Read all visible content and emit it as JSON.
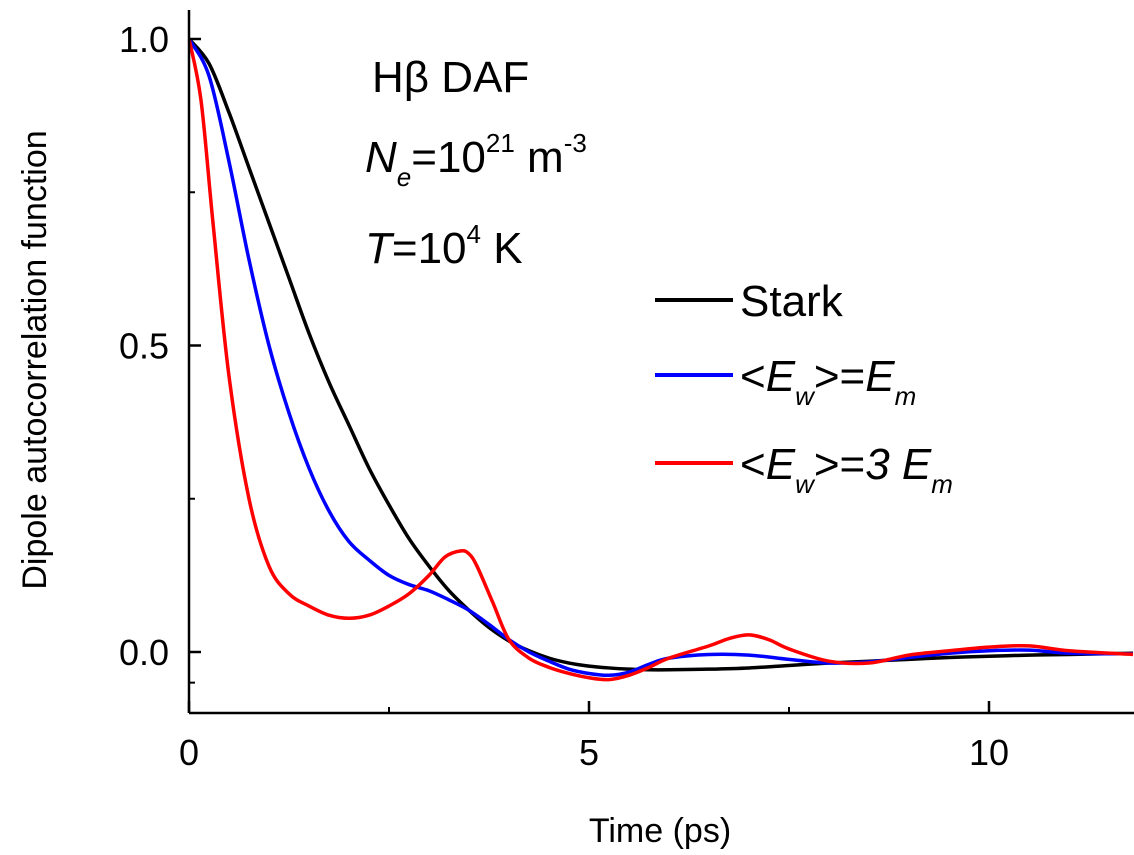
{
  "chart_data": {
    "type": "line",
    "xlabel": "Time (ps)",
    "ylabel": "Dipole autocorrelation function",
    "xlim": [
      0,
      11.8
    ],
    "ylim": [
      -0.1,
      1.05
    ],
    "xticks": [
      0,
      5,
      10
    ],
    "xtick_labels": [
      "0",
      "5",
      "10"
    ],
    "yticks": [
      0.0,
      0.5,
      1.0
    ],
    "ytick_labels": [
      "0.0",
      "0.5",
      "1.0"
    ],
    "grid": false,
    "legend_position": "right",
    "annotation": {
      "line1": "Hβ DAF",
      "line2_symbol": "N",
      "line2_sub": "e",
      "line2_text": "=10",
      "line2_sup": "21",
      "line2_unit": " m",
      "line2_unit_sup": "-3",
      "line3_symbol": "T",
      "line3_text": "=10",
      "line3_sup": "4",
      "line3_unit": " K"
    },
    "series": [
      {
        "name": "Stark",
        "color": "#000000",
        "x": [
          0,
          0.25,
          0.5,
          0.75,
          1.0,
          1.25,
          1.5,
          1.75,
          2.0,
          2.25,
          2.5,
          2.75,
          3.0,
          3.25,
          3.5,
          3.75,
          4.0,
          4.25,
          4.5,
          4.75,
          5.0,
          5.25,
          5.5,
          5.75,
          6.0,
          6.5,
          7.0,
          7.5,
          8.0,
          8.5,
          9.0,
          9.5,
          10.0,
          10.5,
          11.0,
          11.8
        ],
        "y": [
          1.0,
          0.96,
          0.88,
          0.79,
          0.7,
          0.61,
          0.52,
          0.44,
          0.37,
          0.3,
          0.24,
          0.185,
          0.14,
          0.1,
          0.068,
          0.04,
          0.018,
          0.002,
          -0.01,
          -0.018,
          -0.023,
          -0.026,
          -0.028,
          -0.029,
          -0.029,
          -0.028,
          -0.026,
          -0.022,
          -0.018,
          -0.015,
          -0.012,
          -0.009,
          -0.007,
          -0.005,
          -0.004,
          -0.002
        ]
      },
      {
        "name": "<E_w>=E_m",
        "label_parts": [
          "<",
          "E",
          "w",
          ">=",
          "E",
          "m"
        ],
        "color": "#0000ff",
        "x": [
          0,
          0.25,
          0.5,
          0.75,
          1.0,
          1.25,
          1.5,
          1.75,
          2.0,
          2.25,
          2.5,
          2.75,
          3.0,
          3.25,
          3.5,
          3.75,
          4.0,
          4.25,
          4.5,
          4.75,
          5.0,
          5.25,
          5.5,
          5.75,
          6.0,
          6.5,
          7.0,
          7.5,
          8.0,
          8.5,
          9.0,
          9.5,
          10.0,
          10.5,
          11.0,
          11.8
        ],
        "y": [
          1.0,
          0.94,
          0.8,
          0.64,
          0.5,
          0.39,
          0.3,
          0.23,
          0.18,
          0.15,
          0.125,
          0.11,
          0.1,
          0.085,
          0.068,
          0.045,
          0.02,
          0.0,
          -0.015,
          -0.028,
          -0.035,
          -0.038,
          -0.033,
          -0.02,
          -0.01,
          -0.004,
          -0.005,
          -0.012,
          -0.018,
          -0.016,
          -0.009,
          -0.002,
          0.002,
          0.003,
          -0.002,
          -0.003
        ]
      },
      {
        "name": "<E_w>=3 E_m",
        "label_parts": [
          "<",
          "E",
          "w",
          ">=",
          "3 E",
          "m"
        ],
        "color": "#ff0000",
        "x": [
          0,
          0.15,
          0.3,
          0.5,
          0.75,
          1.0,
          1.25,
          1.5,
          1.75,
          2.0,
          2.25,
          2.5,
          2.75,
          3.0,
          3.2,
          3.4,
          3.5,
          3.6,
          3.8,
          4.0,
          4.25,
          4.5,
          4.75,
          5.0,
          5.25,
          5.5,
          5.75,
          6.0,
          6.5,
          6.75,
          7.0,
          7.25,
          7.5,
          8.0,
          8.5,
          9.0,
          9.5,
          10.0,
          10.5,
          11.0,
          11.8
        ],
        "y": [
          1.0,
          0.9,
          0.7,
          0.45,
          0.25,
          0.14,
          0.095,
          0.075,
          0.06,
          0.055,
          0.06,
          0.075,
          0.095,
          0.125,
          0.155,
          0.165,
          0.16,
          0.14,
          0.08,
          0.02,
          -0.01,
          -0.025,
          -0.035,
          -0.042,
          -0.045,
          -0.038,
          -0.025,
          -0.01,
          0.01,
          0.022,
          0.028,
          0.02,
          0.005,
          -0.015,
          -0.018,
          -0.005,
          0.002,
          0.008,
          0.01,
          0.002,
          -0.004
        ]
      }
    ]
  }
}
